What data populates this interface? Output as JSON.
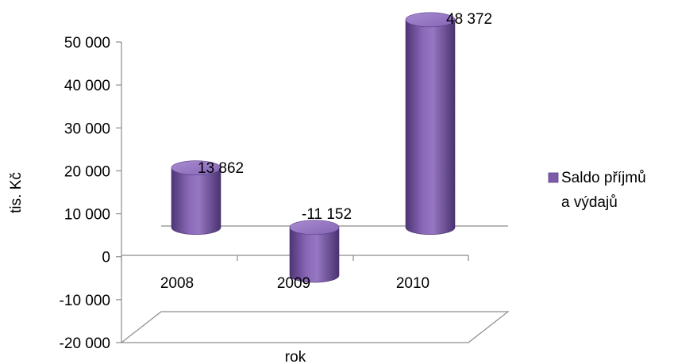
{
  "chart_data": {
    "type": "bar",
    "style": "3d-cylinder",
    "categories": [
      "2008",
      "2009",
      "2010"
    ],
    "series": [
      {
        "name": "Saldo příjmů a výdajů",
        "values": [
          13862,
          -11152,
          48372
        ],
        "data_labels": [
          "13 862",
          "-11 152",
          "48 372"
        ],
        "color": "#7E5BAA"
      }
    ],
    "ylabel": "tis. Kč",
    "xlabel": "rok",
    "ylim": [
      -20000,
      50000
    ],
    "y_ticks": [
      50000,
      40000,
      30000,
      20000,
      10000,
      0,
      -10000,
      -20000
    ],
    "y_tick_labels": [
      "50 000",
      "40 000",
      "30 000",
      "20 000",
      "10 000",
      "0",
      "-10 000",
      "-20 000"
    ],
    "grid": false,
    "legend_position": "right",
    "legend": {
      "lines": [
        "Saldo příjmů",
        "a výdajů"
      ]
    }
  }
}
